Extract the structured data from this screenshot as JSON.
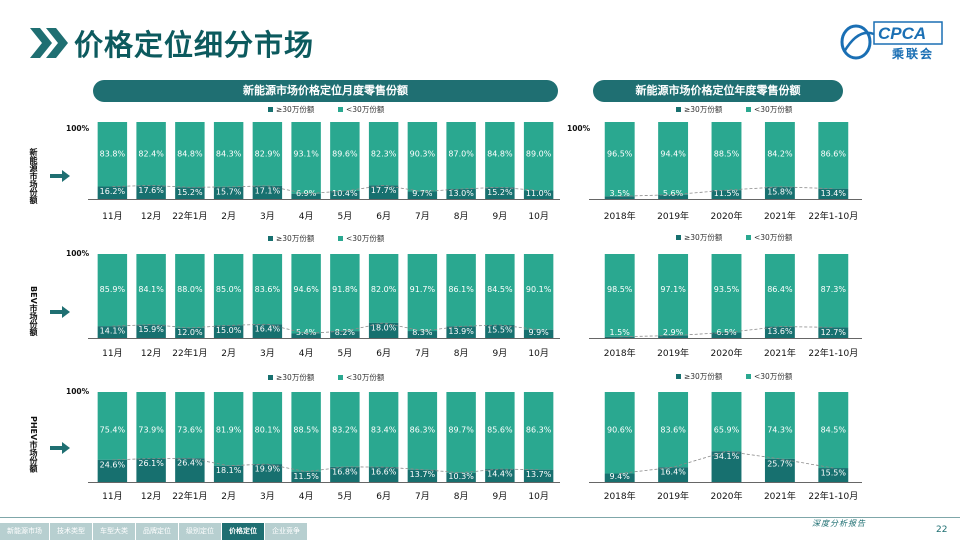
{
  "title": "价格定位细分市场",
  "logo": {
    "text": "CPCA",
    "sub": "乘联会"
  },
  "panels": {
    "monthly_title": "新能源市场价格定位月度零售份额",
    "yearly_title": "新能源市场价格定位年度零售份额"
  },
  "row_labels": [
    "新能源市场份额",
    "BEV市场份额",
    "PHEV市场份额"
  ],
  "footer": {
    "nav": [
      "新能源市场",
      "技术类型",
      "车型大类",
      "品牌定位",
      "级别定位",
      "价格定位",
      "企业竞争"
    ],
    "active_index": 5,
    "tagline": "深度分析报告",
    "page_number": "22"
  },
  "colors": {
    "high": "#17706f",
    "low": "#2aa890",
    "pill": "#1f6f72",
    "title": "#0c5a5e"
  },
  "chart_data": [
    {
      "type": "bar",
      "stacked": true,
      "percent": true,
      "group": "新能源市场份额",
      "categories": [
        "11月",
        "12月",
        "22年1月",
        "2月",
        "3月",
        "4月",
        "5月",
        "6月",
        "7月",
        "8月",
        "9月",
        "10月"
      ],
      "ylim": [
        0,
        100
      ],
      "ytick": "100%",
      "legend": "top",
      "series": [
        {
          "name": "≥30万份额",
          "values": [
            16.2,
            17.6,
            15.2,
            15.7,
            17.1,
            6.9,
            10.4,
            17.7,
            9.7,
            13.0,
            15.2,
            11.0
          ]
        },
        {
          "name": "<30万份额",
          "values": [
            83.8,
            82.4,
            84.8,
            84.3,
            82.9,
            93.1,
            89.6,
            82.3,
            90.3,
            87.0,
            84.8,
            89.0
          ]
        }
      ]
    },
    {
      "type": "bar",
      "stacked": true,
      "percent": true,
      "group": "新能源市场份额",
      "categories": [
        "2018年",
        "2019年",
        "2020年",
        "2021年",
        "22年1-10月"
      ],
      "ylim": [
        0,
        100
      ],
      "ytick": "100%",
      "legend": "top",
      "series": [
        {
          "name": "≥30万份额",
          "values": [
            3.5,
            5.6,
            11.5,
            15.8,
            13.4
          ]
        },
        {
          "name": "<30万份额",
          "values": [
            96.5,
            94.4,
            88.5,
            84.2,
            86.6
          ]
        }
      ]
    },
    {
      "type": "bar",
      "stacked": true,
      "percent": true,
      "group": "BEV市场份额",
      "categories": [
        "11月",
        "12月",
        "22年1月",
        "2月",
        "3月",
        "4月",
        "5月",
        "6月",
        "7月",
        "8月",
        "9月",
        "10月"
      ],
      "ylim": [
        0,
        100
      ],
      "ytick": "100%",
      "legend": "top",
      "series": [
        {
          "name": "≥30万份额",
          "values": [
            14.1,
            15.9,
            12.0,
            15.0,
            16.4,
            5.4,
            8.2,
            18.0,
            8.3,
            13.9,
            15.5,
            9.9
          ]
        },
        {
          "name": "<30万份额",
          "values": [
            85.9,
            84.1,
            88.0,
            85.0,
            83.6,
            94.6,
            91.8,
            82.0,
            91.7,
            86.1,
            84.5,
            90.1
          ]
        }
      ]
    },
    {
      "type": "bar",
      "stacked": true,
      "percent": true,
      "group": "BEV市场份额",
      "categories": [
        "2018年",
        "2019年",
        "2020年",
        "2021年",
        "22年1-10月"
      ],
      "ylim": [
        0,
        100
      ],
      "ytick": "",
      "legend": "top",
      "series": [
        {
          "name": "≥30万份额",
          "values": [
            1.5,
            2.9,
            6.5,
            13.6,
            12.7
          ]
        },
        {
          "name": "<30万份额",
          "values": [
            98.5,
            97.1,
            93.5,
            86.4,
            87.3
          ]
        }
      ]
    },
    {
      "type": "bar",
      "stacked": true,
      "percent": true,
      "group": "PHEV市场份额",
      "categories": [
        "11月",
        "12月",
        "22年1月",
        "2月",
        "3月",
        "4月",
        "5月",
        "6月",
        "7月",
        "8月",
        "9月",
        "10月"
      ],
      "ylim": [
        0,
        100
      ],
      "ytick": "100%",
      "legend": "top",
      "series": [
        {
          "name": "≥30万份额",
          "values": [
            24.6,
            26.1,
            26.4,
            18.1,
            19.9,
            11.5,
            16.8,
            16.6,
            13.7,
            10.3,
            14.4,
            13.7
          ]
        },
        {
          "name": "<30万份额",
          "values": [
            75.4,
            73.9,
            73.6,
            81.9,
            80.1,
            88.5,
            83.2,
            83.4,
            86.3,
            89.7,
            85.6,
            86.3
          ]
        }
      ]
    },
    {
      "type": "bar",
      "stacked": true,
      "percent": true,
      "group": "PHEV市场份额",
      "categories": [
        "2018年",
        "2019年",
        "2020年",
        "2021年",
        "22年1-10月"
      ],
      "ylim": [
        0,
        100
      ],
      "ytick": "",
      "legend": "top",
      "series": [
        {
          "name": "≥30万份额",
          "values": [
            9.4,
            16.4,
            34.1,
            25.7,
            15.5
          ]
        },
        {
          "name": "<30万份额",
          "values": [
            90.6,
            83.6,
            65.9,
            74.3,
            84.5
          ]
        }
      ]
    }
  ]
}
